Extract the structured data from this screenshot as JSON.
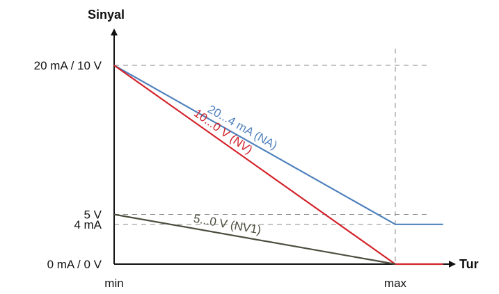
{
  "chart_data": {
    "type": "line",
    "ylabel": "Sinyal",
    "xlabel": "Tur",
    "x_ticks": [
      "min",
      "max"
    ],
    "y_ticks": [
      {
        "label": "0 mA / 0 V",
        "level": 0
      },
      {
        "label": "4 mA",
        "level": 4
      },
      {
        "label": "5 V",
        "level": 5
      },
      {
        "label": "20 mA / 10 V",
        "level": 20
      }
    ],
    "xlim": [
      0,
      1
    ],
    "ylim": [
      0,
      20
    ],
    "grid": "dashed reference lines at tick levels and at max",
    "series": [
      {
        "name": "20...4 mA (NA)",
        "color": "#4f81bd",
        "x": [
          0,
          1,
          1.17
        ],
        "y": [
          20,
          4,
          4
        ],
        "label_at": 0.45
      },
      {
        "name": "10...0 V (NV)",
        "color": "#d2232a",
        "x": [
          0,
          1,
          1.17
        ],
        "y": [
          20,
          0,
          0
        ],
        "label_at": 0.38
      },
      {
        "name": "5...0 V (NV1)",
        "color": "#4d4d3f",
        "x": [
          0,
          1
        ],
        "y": [
          5,
          0
        ],
        "label_at": 0.4
      }
    ]
  }
}
